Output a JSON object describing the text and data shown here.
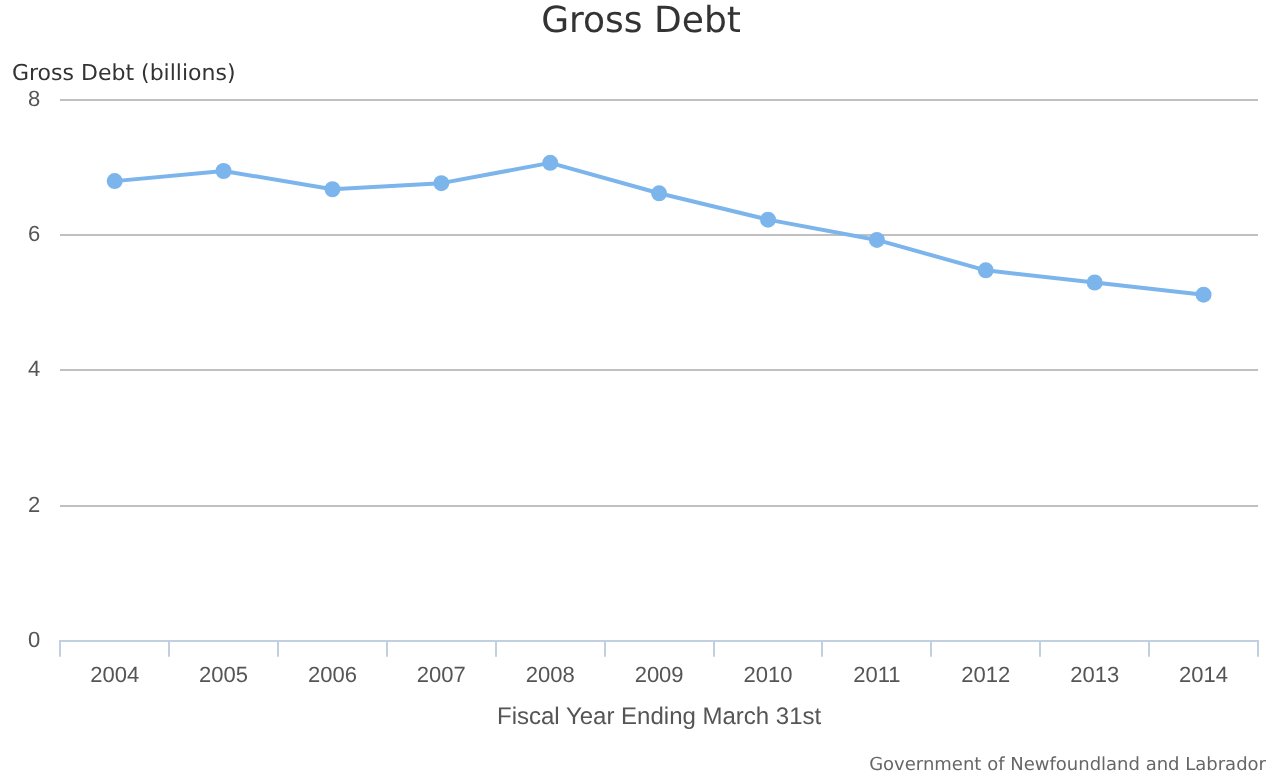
{
  "chart_data": {
    "type": "line",
    "title": "Gross Debt",
    "ylabel": "Gross Debt (billions)",
    "xlabel": "Fiscal Year Ending March 31st",
    "annotations": [
      "Government of Newfoundland and Labrador"
    ],
    "categories": [
      "2004",
      "2005",
      "2006",
      "2007",
      "2008",
      "2009",
      "2010",
      "2011",
      "2012",
      "2013",
      "2014"
    ],
    "series": [
      {
        "color": "#7cb5ec",
        "values": [
          6.8,
          6.95,
          6.68,
          6.77,
          7.07,
          6.62,
          6.23,
          5.93,
          5.48,
          5.3,
          5.12
        ]
      }
    ],
    "ylim": [
      0,
      8
    ],
    "yticks": [
      0,
      2,
      4,
      6,
      8
    ],
    "grid": "y",
    "legend": false,
    "marker": "circle",
    "line_style": "solid"
  }
}
